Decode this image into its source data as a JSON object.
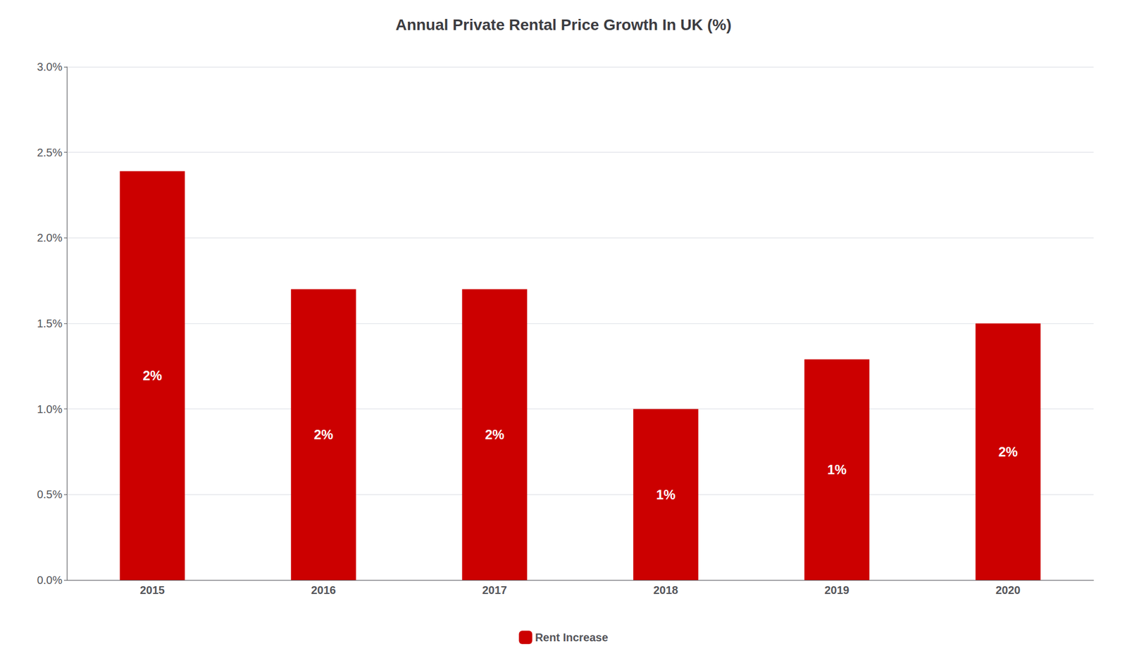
{
  "chart_data": {
    "type": "bar",
    "title": "Annual Private Rental Price Growth In UK (%)",
    "categories": [
      "2015",
      "2016",
      "2017",
      "2018",
      "2019",
      "2020"
    ],
    "series": [
      {
        "name": "Rent Increase",
        "color": "#CC0000",
        "values": [
          0.0239,
          0.017,
          0.017,
          0.01,
          0.0129,
          0.015
        ],
        "value_labels": [
          "2%",
          "2%",
          "2%",
          "1%",
          "1%",
          "2%"
        ]
      }
    ],
    "ylim": [
      0.0,
      0.03
    ],
    "yticks": [
      {
        "value": 0.0,
        "label": "0.0%"
      },
      {
        "value": 0.005,
        "label": "0.5%"
      },
      {
        "value": 0.01,
        "label": "1.0%"
      },
      {
        "value": 0.015,
        "label": "1.5%"
      },
      {
        "value": 0.02,
        "label": "2.0%"
      },
      {
        "value": 0.025,
        "label": "2.5%"
      },
      {
        "value": 0.03,
        "label": "3.0%"
      }
    ],
    "grid": true,
    "legend": "bottom"
  }
}
